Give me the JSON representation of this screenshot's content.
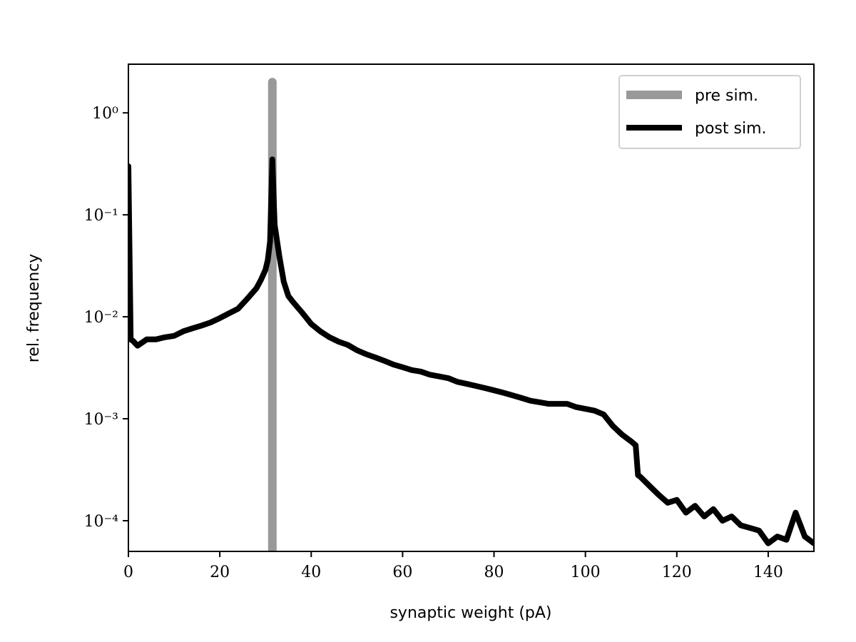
{
  "chart_data": {
    "type": "line",
    "xlabel": "synaptic weight (pA)",
    "ylabel": "rel. frequency",
    "log_y": true,
    "legend": "upper right",
    "xlim": [
      0,
      150
    ],
    "xticks": [
      0,
      20,
      40,
      60,
      80,
      100,
      120,
      140
    ],
    "ylim": [
      5e-05,
      3
    ],
    "yticks": [
      {
        "value": 1,
        "label": "10⁰"
      },
      {
        "value": 0.1,
        "label": "10⁻¹"
      },
      {
        "value": 0.01,
        "label": "10⁻²"
      },
      {
        "value": 0.001,
        "label": "10⁻³"
      },
      {
        "value": 0.0001,
        "label": "10⁻⁴"
      }
    ],
    "series": [
      {
        "name": "pre sim.",
        "color": "#999999",
        "width": 12,
        "x": [
          31.5,
          31.5
        ],
        "values": [
          0,
          2
        ]
      },
      {
        "name": "post sim.",
        "color": "#000000",
        "width": 8,
        "x": [
          0,
          0.5,
          1,
          2,
          4,
          6,
          8,
          10,
          12,
          14,
          16,
          18,
          20,
          22,
          24,
          26,
          28,
          29,
          30,
          30.5,
          31,
          31.5,
          32,
          33,
          34,
          35,
          36,
          38,
          40,
          42,
          44,
          46,
          48,
          50,
          52,
          54,
          56,
          58,
          60,
          62,
          64,
          66,
          68,
          70,
          72,
          74,
          76,
          78,
          80,
          82,
          84,
          86,
          88,
          90,
          92,
          94,
          96,
          98,
          100,
          102,
          104,
          106,
          108,
          110,
          111,
          111.5,
          112,
          114,
          116,
          118,
          120,
          122,
          124,
          126,
          128,
          130,
          132,
          134,
          136,
          138,
          140,
          142,
          144,
          146,
          148,
          150
        ],
        "values": [
          0.3,
          0.006,
          0.0058,
          0.0052,
          0.006,
          0.006,
          0.0063,
          0.0065,
          0.0072,
          0.0077,
          0.0082,
          0.0088,
          0.0097,
          0.0108,
          0.012,
          0.015,
          0.019,
          0.023,
          0.029,
          0.036,
          0.055,
          0.35,
          0.08,
          0.04,
          0.022,
          0.016,
          0.014,
          0.011,
          0.0085,
          0.0072,
          0.0063,
          0.0057,
          0.0053,
          0.0047,
          0.0043,
          0.004,
          0.0037,
          0.0034,
          0.0032,
          0.003,
          0.0029,
          0.0027,
          0.0026,
          0.0025,
          0.0023,
          0.0022,
          0.0021,
          0.002,
          0.0019,
          0.0018,
          0.0017,
          0.0016,
          0.0015,
          0.00145,
          0.0014,
          0.0014,
          0.0014,
          0.0013,
          0.00125,
          0.0012,
          0.0011,
          0.00085,
          0.0007,
          0.0006,
          0.00055,
          0.00028,
          0.00027,
          0.00022,
          0.00018,
          0.00015,
          0.00016,
          0.00012,
          0.00014,
          0.00011,
          0.00013,
          0.0001,
          0.00011,
          9e-05,
          8.5e-05,
          8e-05,
          6e-05,
          7e-05,
          6.5e-05,
          0.00012,
          7e-05,
          6e-05
        ]
      }
    ]
  }
}
